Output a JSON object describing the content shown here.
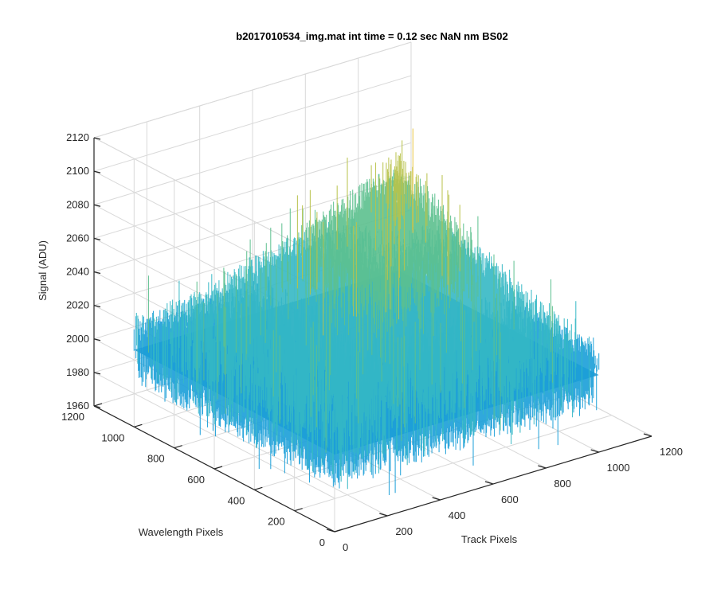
{
  "chart_data": {
    "type": "surface3d",
    "title": "b2017010534_img.mat int time = 0.12 sec  NaN nm BS02",
    "xlabel": "Track Pixels",
    "ylabel": "Wavelength Pixels",
    "zlabel": "Signal (ADU)",
    "xlim": [
      0,
      1200
    ],
    "ylim": [
      0,
      1200
    ],
    "zlim": [
      1960,
      2120
    ],
    "xticks": [
      "0",
      "200",
      "400",
      "600",
      "800",
      "1000",
      "1200"
    ],
    "yticks": [
      "0",
      "200",
      "400",
      "600",
      "800",
      "1000",
      "1200"
    ],
    "zticks": [
      "1960",
      "1980",
      "2000",
      "2020",
      "2040",
      "2060",
      "2080",
      "2100",
      "2120"
    ],
    "grid": true,
    "colormap": [
      "#0072bd",
      "#1a9fd8",
      "#35b8c4",
      "#5cc08e",
      "#b8c24a",
      "#e6c23c"
    ],
    "surface": {
      "data_extent_x": [
        0,
        1000
      ],
      "data_extent_y": [
        0,
        1000
      ],
      "baseline_signal": 2010,
      "peak_signal": 2060,
      "peak_location": [
        1000,
        1000
      ],
      "noise_amplitude": 18
    }
  }
}
